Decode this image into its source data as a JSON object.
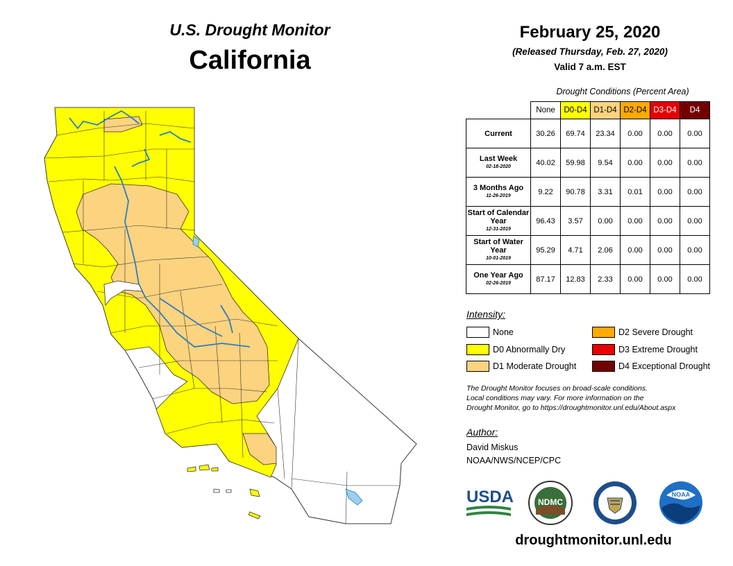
{
  "header": {
    "title": "U.S. Drought Monitor",
    "state": "California",
    "date": "February 25, 2020",
    "released": "(Released Thursday, Feb. 27, 2020)",
    "valid": "Valid 7 a.m. EST"
  },
  "table": {
    "caption": "Drought Conditions (Percent Area)",
    "columns": [
      "None",
      "D0-D4",
      "D1-D4",
      "D2-D4",
      "D3-D4",
      "D4"
    ],
    "column_colors": [
      "#ffffff",
      "#ffff00",
      "#fcd37f",
      "#ffaa00",
      "#e60000",
      "#730000"
    ],
    "column_text_colors": [
      "#000000",
      "#000000",
      "#000000",
      "#000000",
      "#ffffff",
      "#ffffff"
    ],
    "rows": [
      {
        "label": "Current",
        "date": "",
        "values": [
          "30.26",
          "69.74",
          "23.34",
          "0.00",
          "0.00",
          "0.00"
        ]
      },
      {
        "label": "Last Week",
        "date": "02-18-2020",
        "values": [
          "40.02",
          "59.98",
          "9.54",
          "0.00",
          "0.00",
          "0.00"
        ]
      },
      {
        "label": "3 Months Ago",
        "date": "11-26-2019",
        "values": [
          "9.22",
          "90.78",
          "3.31",
          "0.01",
          "0.00",
          "0.00"
        ]
      },
      {
        "label": "Start of Calendar Year",
        "date": "12-31-2019",
        "values": [
          "96.43",
          "3.57",
          "0.00",
          "0.00",
          "0.00",
          "0.00"
        ]
      },
      {
        "label": "Start of Water Year",
        "date": "10-01-2019",
        "values": [
          "95.29",
          "4.71",
          "2.06",
          "0.00",
          "0.00",
          "0.00"
        ]
      },
      {
        "label": "One Year Ago",
        "date": "02-26-2019",
        "values": [
          "87.17",
          "12.83",
          "2.33",
          "0.00",
          "0.00",
          "0.00"
        ]
      }
    ]
  },
  "legend": {
    "title": "Intensity:",
    "items": [
      {
        "label": "None",
        "color": "#ffffff"
      },
      {
        "label": "D0 Abnormally Dry",
        "color": "#ffff00"
      },
      {
        "label": "D1 Moderate Drought",
        "color": "#fcd37f"
      },
      {
        "label": "D2 Severe Drought",
        "color": "#ffaa00"
      },
      {
        "label": "D3 Extreme Drought",
        "color": "#e60000"
      },
      {
        "label": "D4 Exceptional Drought",
        "color": "#730000"
      }
    ]
  },
  "note": {
    "line1": "The Drought Monitor focuses on broad-scale conditions.",
    "line2": "Local conditions may vary. For more information on the",
    "line3": "Drought Monitor, go to https://droughtmonitor.unl.edu/About.aspx"
  },
  "author": {
    "heading": "Author:",
    "name": "David Miskus",
    "org": "NOAA/NWS/NCEP/CPC"
  },
  "logos": {
    "usda": "USDA",
    "ndmc": "NDMC",
    "noaa": "NOAA"
  },
  "footer": {
    "url": "droughtmonitor.unl.edu"
  },
  "map": {
    "none_color": "#ffffff",
    "d0_color": "#ffff00",
    "d1_color": "#fcd37f",
    "water_color": "#9ad0ec",
    "river_color": "#2b7cc2"
  }
}
